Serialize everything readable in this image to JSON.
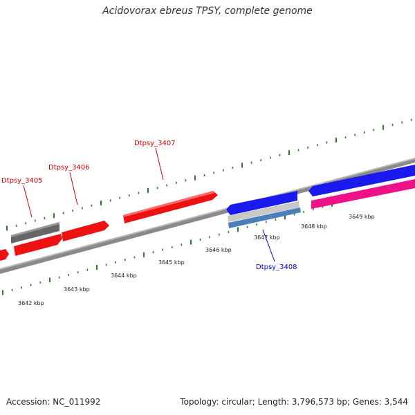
{
  "title": "Acidovorax ebreus TPSY, complete genome",
  "footer": {
    "accession": "Accession: NC_011992",
    "summary": "Topology: circular; Length: 3,796,573 bp; Genes: 3,544"
  },
  "colors": {
    "backbone": "#8a8a8a",
    "tick": "#2a7a2a",
    "forward_gene": "#ee1111",
    "reverse_gene": "#1a1aee",
    "grey_gene": "#666666",
    "pink_gene": "#ee1188",
    "light_grey_gene": "#c8c8c8",
    "steel_gene": "#4a7fb8",
    "forward_label": "#cc0000",
    "reverse_label": "#0000cc"
  },
  "tick_labels": [
    "3642 kbp",
    "3643 kbp",
    "3644 kbp",
    "3645 kbp",
    "3646 kbp",
    "3647 kbp",
    "3648 kbp",
    "3649 kbp"
  ],
  "gene_labels": [
    {
      "text": "Dtpsy_3405",
      "strand": "forward"
    },
    {
      "text": "Dtpsy_3406",
      "strand": "forward"
    },
    {
      "text": "Dtpsy_3407",
      "strand": "forward"
    },
    {
      "text": "Dtpsy_3408",
      "strand": "reverse"
    }
  ]
}
